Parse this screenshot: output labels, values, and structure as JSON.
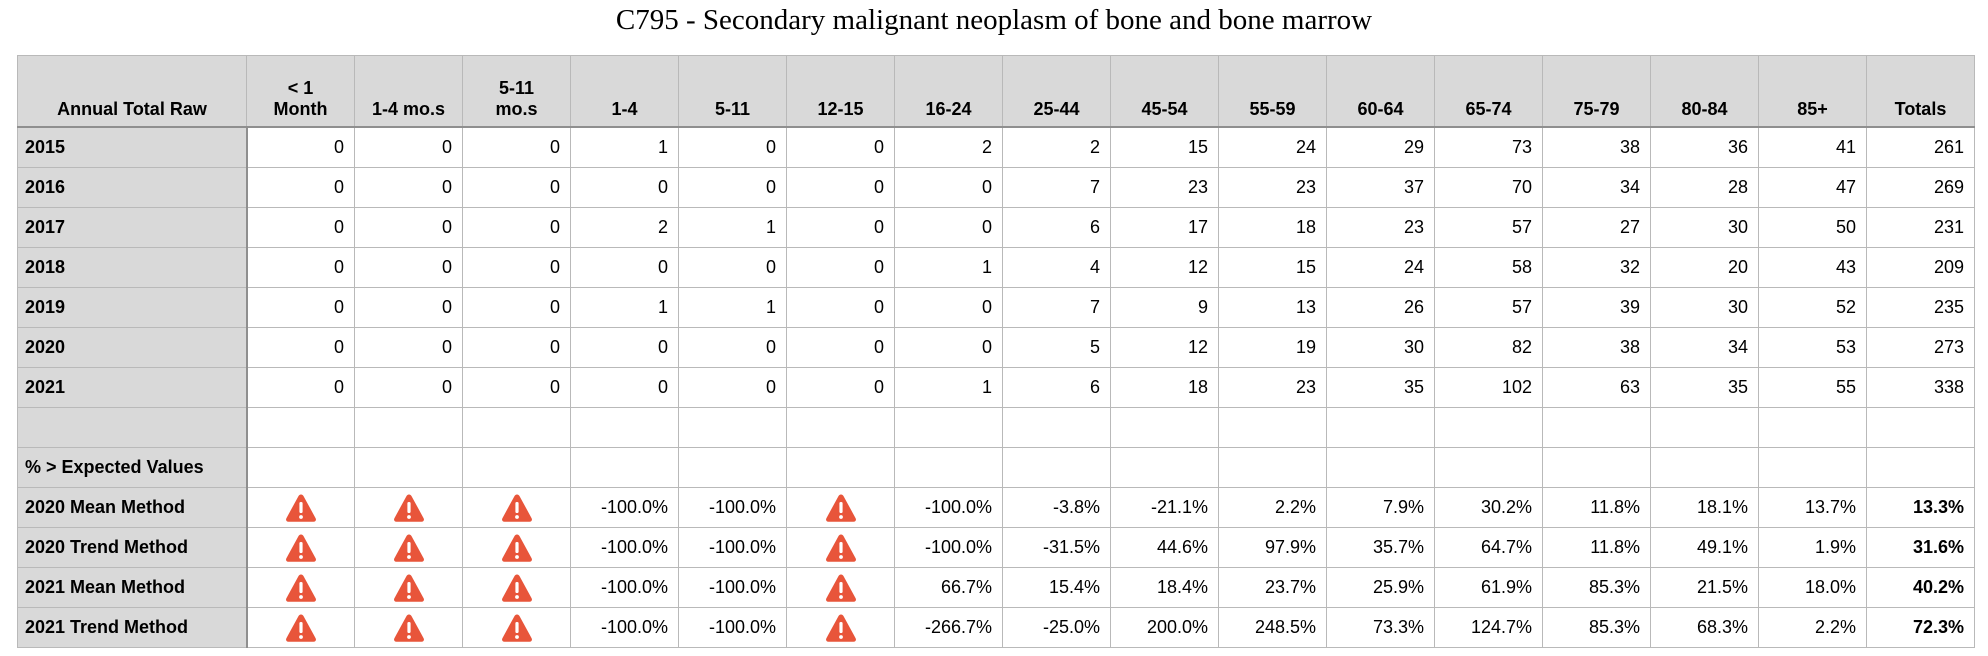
{
  "title": "C795 - Secondary malignant neoplasm of bone and bone marrow",
  "colors": {
    "header_bg": "#d9d9d9",
    "grid": "#b9b9b9",
    "warning": "#e8553a"
  },
  "chart_data": {
    "type": "table",
    "title": "C795 - Secondary malignant neoplasm of bone and bone marrow",
    "columns": [
      {
        "line1": "Annual Total Raw",
        "line2": ""
      },
      {
        "line1": "< 1",
        "line2": "Month"
      },
      {
        "line1": "1-4 mo.s",
        "line2": ""
      },
      {
        "line1": "5-11",
        "line2": "mo.s"
      },
      {
        "line1": "1-4",
        "line2": ""
      },
      {
        "line1": "5-11",
        "line2": ""
      },
      {
        "line1": "12-15",
        "line2": ""
      },
      {
        "line1": "16-24",
        "line2": ""
      },
      {
        "line1": "25-44",
        "line2": ""
      },
      {
        "line1": "45-54",
        "line2": ""
      },
      {
        "line1": "55-59",
        "line2": ""
      },
      {
        "line1": "60-64",
        "line2": ""
      },
      {
        "line1": "65-74",
        "line2": ""
      },
      {
        "line1": "75-79",
        "line2": ""
      },
      {
        "line1": "80-84",
        "line2": ""
      },
      {
        "line1": "85+",
        "line2": ""
      },
      {
        "line1": "Totals",
        "line2": ""
      }
    ],
    "rows": [
      {
        "label": "2015",
        "cells": [
          "0",
          "0",
          "0",
          "1",
          "0",
          "0",
          "2",
          "2",
          "15",
          "24",
          "29",
          "73",
          "38",
          "36",
          "41",
          "261"
        ]
      },
      {
        "label": "2016",
        "cells": [
          "0",
          "0",
          "0",
          "0",
          "0",
          "0",
          "0",
          "7",
          "23",
          "23",
          "37",
          "70",
          "34",
          "28",
          "47",
          "269"
        ]
      },
      {
        "label": "2017",
        "cells": [
          "0",
          "0",
          "0",
          "2",
          "1",
          "0",
          "0",
          "6",
          "17",
          "18",
          "23",
          "57",
          "27",
          "30",
          "50",
          "231"
        ]
      },
      {
        "label": "2018",
        "cells": [
          "0",
          "0",
          "0",
          "0",
          "0",
          "0",
          "1",
          "4",
          "12",
          "15",
          "24",
          "58",
          "32",
          "20",
          "43",
          "209"
        ]
      },
      {
        "label": "2019",
        "cells": [
          "0",
          "0",
          "0",
          "1",
          "1",
          "0",
          "0",
          "7",
          "9",
          "13",
          "26",
          "57",
          "39",
          "30",
          "52",
          "235"
        ]
      },
      {
        "label": "2020",
        "cells": [
          "0",
          "0",
          "0",
          "0",
          "0",
          "0",
          "0",
          "5",
          "12",
          "19",
          "30",
          "82",
          "38",
          "34",
          "53",
          "273"
        ]
      },
      {
        "label": "2021",
        "cells": [
          "0",
          "0",
          "0",
          "0",
          "0",
          "0",
          "1",
          "6",
          "18",
          "23",
          "35",
          "102",
          "63",
          "35",
          "55",
          "338"
        ]
      },
      {
        "label": "",
        "cells": [
          "",
          "",
          "",
          "",
          "",
          "",
          "",
          "",
          "",
          "",
          "",
          "",
          "",
          "",
          "",
          ""
        ]
      },
      {
        "label": "% > Expected Values",
        "cells": [
          "",
          "",
          "",
          "",
          "",
          "",
          "",
          "",
          "",
          "",
          "",
          "",
          "",
          "",
          "",
          ""
        ]
      },
      {
        "label": "2020 Mean Method",
        "cells": [
          "!",
          "!",
          "!",
          "-100.0%",
          "-100.0%",
          "!",
          "-100.0%",
          "-3.8%",
          "-21.1%",
          "2.2%",
          "7.9%",
          "30.2%",
          "11.8%",
          "18.1%",
          "13.7%",
          "13.3%"
        ]
      },
      {
        "label": "2020 Trend Method",
        "cells": [
          "!",
          "!",
          "!",
          "-100.0%",
          "-100.0%",
          "!",
          "-100.0%",
          "-31.5%",
          "44.6%",
          "97.9%",
          "35.7%",
          "64.7%",
          "11.8%",
          "49.1%",
          "1.9%",
          "31.6%"
        ]
      },
      {
        "label": "2021 Mean Method",
        "cells": [
          "!",
          "!",
          "!",
          "-100.0%",
          "-100.0%",
          "!",
          "66.7%",
          "15.4%",
          "18.4%",
          "23.7%",
          "25.9%",
          "61.9%",
          "85.3%",
          "21.5%",
          "18.0%",
          "40.2%"
        ]
      },
      {
        "label": "2021 Trend Method",
        "cells": [
          "!",
          "!",
          "!",
          "-100.0%",
          "-100.0%",
          "!",
          "-266.7%",
          "-25.0%",
          "200.0%",
          "248.5%",
          "73.3%",
          "124.7%",
          "85.3%",
          "68.3%",
          "2.2%",
          "72.3%"
        ]
      }
    ],
    "warning_marker": "!",
    "warning_icon": "warning-triangle-icon",
    "bold_totals_rows": [
      "2020 Mean Method",
      "2020 Trend Method",
      "2021 Mean Method",
      "2021 Trend Method"
    ]
  }
}
